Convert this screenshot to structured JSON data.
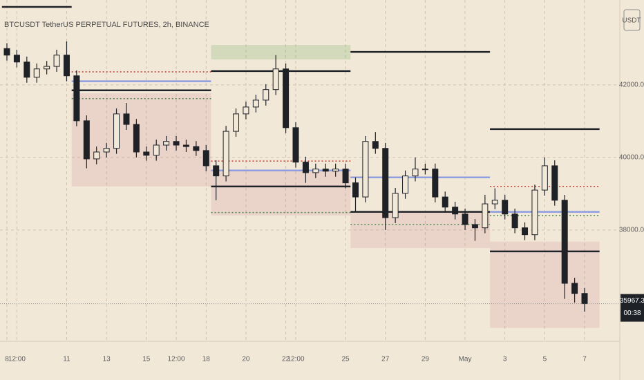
{
  "chart_data": {
    "type": "candlestick",
    "title": "BTCUSDT TetherUS PERPETUAL FUTURES, 2h, BINANCE",
    "currency": "USDT",
    "countdown": "00:38",
    "last_price": 35967.3,
    "categories": [
      "8",
      "12:00",
      null,
      null,
      null,
      null,
      "11",
      null,
      null,
      null,
      "13",
      null,
      null,
      null,
      "15",
      null,
      null,
      "12:00",
      null,
      null,
      "18",
      null,
      null,
      null,
      "20",
      null,
      null,
      null,
      "22",
      "12:00",
      null,
      null,
      null,
      null,
      "25",
      null,
      null,
      null,
      "27",
      null,
      null,
      null,
      "29",
      null,
      null,
      null,
      "May",
      null,
      null,
      null,
      "3",
      null,
      null,
      null,
      "5",
      null,
      null,
      null,
      "7"
    ],
    "open": [
      43000,
      42820,
      42630,
      42210,
      42440,
      42510,
      42820,
      42250,
      41010,
      39960,
      40150,
      40250,
      41200,
      40910,
      40150,
      40060,
      40340,
      40440,
      40340,
      40300,
      40190,
      39770,
      39490,
      40720,
      41200,
      41390,
      41580,
      41870,
      42440,
      40820,
      39870,
      39580,
      39680,
      39620,
      39680,
      39300,
      38910,
      40440,
      40250,
      38340,
      39010,
      39490,
      39680,
      39680,
      38910,
      38630,
      38440,
      38150,
      38060,
      38720,
      38820,
      38440,
      38060,
      37870,
      39100,
      39770,
      38820,
      36530,
      36250
    ],
    "high": [
      43150,
      42970,
      42780,
      42590,
      42660,
      42970,
      43200,
      42400,
      41160,
      40300,
      40400,
      41350,
      41500,
      41060,
      40300,
      40490,
      40590,
      40590,
      40490,
      40450,
      40340,
      39920,
      40870,
      41350,
      41540,
      41730,
      42020,
      42820,
      42590,
      40970,
      40020,
      39830,
      39830,
      39830,
      39830,
      39450,
      40590,
      40700,
      40400,
      39160,
      39640,
      40000,
      39830,
      39830,
      39060,
      38780,
      38590,
      38300,
      38970,
      39150,
      38970,
      38590,
      38210,
      39250,
      40000,
      39920,
      38970,
      36680,
      36400
    ],
    "low": [
      42670,
      42480,
      42060,
      42060,
      42290,
      42360,
      42100,
      40860,
      39700,
      39810,
      40000,
      40100,
      40760,
      40000,
      39910,
      39910,
      40190,
      40190,
      40150,
      40040,
      39620,
      38820,
      39340,
      40570,
      41050,
      41240,
      41430,
      41720,
      40670,
      39720,
      39300,
      39430,
      39470,
      39470,
      39150,
      38500,
      38760,
      40100,
      38000,
      38190,
      38860,
      39340,
      39530,
      38760,
      38480,
      38290,
      38000,
      37700,
      37910,
      38570,
      38290,
      37910,
      37720,
      37720,
      38950,
      38670,
      36100,
      36000,
      35750
    ],
    "close": [
      42820,
      42630,
      42210,
      42440,
      42510,
      42820,
      42250,
      41010,
      39960,
      40150,
      40250,
      41200,
      40910,
      40150,
      40060,
      40340,
      40440,
      40340,
      40300,
      40190,
      39770,
      39490,
      40720,
      41200,
      41390,
      41580,
      41870,
      42440,
      40820,
      39870,
      39580,
      39680,
      39620,
      39680,
      39300,
      38910,
      40440,
      40250,
      38340,
      39010,
      39490,
      39680,
      39680,
      38910,
      38630,
      38440,
      38150,
      38060,
      38720,
      38820,
      38440,
      38060,
      37870,
      39100,
      39770,
      38820,
      36530,
      36250,
      35967.3
    ],
    "up_color": "#f2e8d8",
    "down_color": "#1e2126",
    "wick_color": "#1e2126",
    "ylim": [
      34950,
      44340
    ],
    "yticks": [
      {
        "value": 38000,
        "label": "38000.0"
      },
      {
        "value": 40000,
        "label": "40000.0"
      },
      {
        "value": 42000,
        "label": "42000.0"
      }
    ],
    "grid": true,
    "zones": [
      {
        "low": 39200,
        "high": 41770,
        "from": 7,
        "to": 21,
        "color": "rgba(190,110,130,0.16)"
      },
      {
        "low": 38400,
        "high": 39640,
        "from": 21,
        "to": 35,
        "color": "rgba(190,110,130,0.16)"
      },
      {
        "low": 42700,
        "high": 43100,
        "from": 21,
        "to": 35,
        "color": "rgba(120,170,100,0.25)"
      },
      {
        "low": 37500,
        "high": 38500,
        "from": 35,
        "to": 49,
        "color": "rgba(190,110,130,0.16)"
      },
      {
        "low": 35300,
        "high": 37680,
        "from": 49,
        "to": 60,
        "color": "rgba(190,110,130,0.16)"
      }
    ],
    "levels": [
      {
        "value": 44150,
        "from": 0,
        "to": 7,
        "color": "#1e2126",
        "style": "solid"
      },
      {
        "value": 41850,
        "from": 7,
        "to": 21,
        "color": "#1e2126",
        "style": "solid"
      },
      {
        "value": 42360,
        "from": 7,
        "to": 21,
        "color": "#c0392b",
        "style": "dotted"
      },
      {
        "value": 42100,
        "from": 7,
        "to": 21,
        "color": "#8d9de0",
        "style": "solid"
      },
      {
        "value": 41620,
        "from": 7,
        "to": 21,
        "color": "#4c8a4c",
        "style": "dotted"
      },
      {
        "value": 42380,
        "from": 21,
        "to": 35,
        "color": "#1e2126",
        "style": "solid"
      },
      {
        "value": 39200,
        "from": 21,
        "to": 35,
        "color": "#1e2126",
        "style": "solid"
      },
      {
        "value": 39900,
        "from": 21,
        "to": 35,
        "color": "#c0392b",
        "style": "dotted"
      },
      {
        "value": 39640,
        "from": 21,
        "to": 35,
        "color": "#8d9de0",
        "style": "solid"
      },
      {
        "value": 38480,
        "from": 21,
        "to": 35,
        "color": "#4c8a4c",
        "style": "dotted"
      },
      {
        "value": 42910,
        "from": 35,
        "to": 49,
        "color": "#1e2126",
        "style": "solid"
      },
      {
        "value": 38500,
        "from": 35,
        "to": 49,
        "color": "#1e2126",
        "style": "solid"
      },
      {
        "value": 39450,
        "from": 35,
        "to": 49,
        "color": "#8d9de0",
        "style": "solid"
      },
      {
        "value": 38150,
        "from": 35,
        "to": 49,
        "color": "#4c8a4c",
        "style": "dotted"
      },
      {
        "value": 40780,
        "from": 49,
        "to": 60,
        "color": "#1e2126",
        "style": "solid"
      },
      {
        "value": 37410,
        "from": 49,
        "to": 60,
        "color": "#1e2126",
        "style": "solid"
      },
      {
        "value": 39200,
        "from": 49,
        "to": 60,
        "color": "#c0392b",
        "style": "dotted"
      },
      {
        "value": 38500,
        "from": 49,
        "to": 60,
        "color": "#8d9de0",
        "style": "solid"
      },
      {
        "value": 38400,
        "from": 49,
        "to": 60,
        "color": "#4c8a4c",
        "style": "dotted"
      }
    ]
  }
}
